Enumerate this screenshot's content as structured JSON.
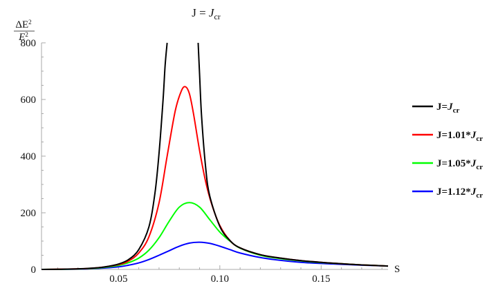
{
  "chart_data": {
    "type": "line",
    "title": {
      "base": "J = ",
      "italic": "J",
      "sub": "cr"
    },
    "ylabel": {
      "numerator": "ΔE",
      "num_sup": "2",
      "denominator": "E",
      "den_sup": "2"
    },
    "xlabel": "S",
    "xlim": [
      0.012,
      0.183
    ],
    "ylim": [
      0,
      800
    ],
    "x_ticks": [
      0.05,
      0.1,
      0.15
    ],
    "x_tick_labels": [
      "0.05",
      "0.10",
      "0.15"
    ],
    "y_ticks": [
      0,
      200,
      400,
      600,
      800
    ],
    "y_tick_labels": [
      "0",
      "200",
      "400",
      "600",
      "800"
    ],
    "legend_position": "right",
    "series": [
      {
        "name": "J=J_cr",
        "legend": {
          "prefix": "J=",
          "italic": "J",
          "sub": "cr"
        },
        "color": "#000000",
        "x": [
          0.012,
          0.02,
          0.03,
          0.04,
          0.045,
          0.05,
          0.055,
          0.06,
          0.065,
          0.068,
          0.07,
          0.072,
          0.073,
          0.074
        ],
        "y": [
          0,
          0.5,
          2,
          6,
          11,
          19,
          35,
          70,
          150,
          270,
          410,
          600,
          720,
          800
        ],
        "x2": [
          0.0893,
          0.09,
          0.091,
          0.093,
          0.095,
          0.1,
          0.105,
          0.11,
          0.12,
          0.13,
          0.14,
          0.15,
          0.16,
          0.17,
          0.183
        ],
        "y2": [
          800,
          690,
          540,
          360,
          260,
          152,
          102,
          76,
          52,
          40,
          31,
          25,
          20,
          16,
          12
        ]
      },
      {
        "name": "J=1.01*J_cr",
        "legend": {
          "prefix": "J=1.01*",
          "italic": "J",
          "sub": "cr"
        },
        "color": "#ff0000",
        "x": [
          0.012,
          0.03,
          0.04,
          0.05,
          0.055,
          0.06,
          0.065,
          0.07,
          0.074,
          0.078,
          0.081,
          0.083,
          0.085,
          0.087,
          0.09,
          0.093,
          0.096,
          0.1,
          0.105,
          0.11,
          0.12,
          0.13,
          0.14,
          0.15,
          0.16,
          0.17,
          0.183
        ],
        "y": [
          0,
          2,
          6,
          17,
          30,
          58,
          115,
          235,
          400,
          560,
          630,
          645,
          620,
          550,
          420,
          310,
          230,
          155,
          102,
          76,
          52,
          40,
          31,
          25,
          20,
          16,
          12
        ]
      },
      {
        "name": "J=1.05*J_cr",
        "legend": {
          "prefix": "J=1.05*",
          "italic": "J",
          "sub": "cr"
        },
        "color": "#00ff00",
        "x": [
          0.012,
          0.03,
          0.04,
          0.05,
          0.055,
          0.06,
          0.065,
          0.07,
          0.075,
          0.08,
          0.085,
          0.09,
          0.095,
          0.1,
          0.105,
          0.11,
          0.12,
          0.13,
          0.14,
          0.15,
          0.16,
          0.17,
          0.183
        ],
        "y": [
          0,
          1.5,
          5,
          14,
          24,
          40,
          68,
          112,
          170,
          220,
          236,
          220,
          176,
          132,
          100,
          75,
          50,
          38,
          30,
          24,
          20,
          16,
          12
        ]
      },
      {
        "name": "J=1.12*J_cr",
        "legend": {
          "prefix": "J=1.12*",
          "italic": "J",
          "sub": "cr"
        },
        "color": "#0000ff",
        "x": [
          0.012,
          0.03,
          0.04,
          0.05,
          0.055,
          0.06,
          0.065,
          0.07,
          0.075,
          0.08,
          0.085,
          0.09,
          0.095,
          0.1,
          0.105,
          0.11,
          0.12,
          0.13,
          0.14,
          0.15,
          0.16,
          0.17,
          0.183
        ],
        "y": [
          0,
          1,
          3.5,
          9,
          15,
          23,
          35,
          50,
          66,
          82,
          93,
          96,
          92,
          82,
          70,
          58,
          42,
          32,
          25,
          21,
          18,
          15,
          12
        ]
      }
    ]
  }
}
